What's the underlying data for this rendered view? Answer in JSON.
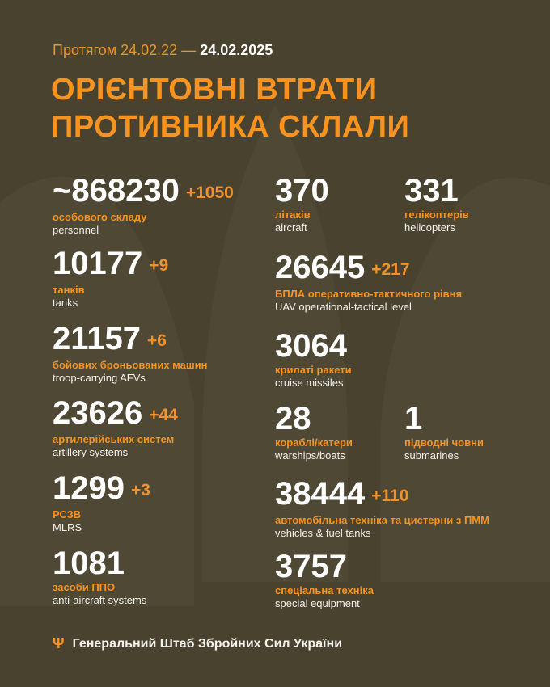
{
  "header": {
    "period_prefix": "Протягом 24.02.22 —",
    "period_end": "24.02.2025",
    "title_line1": "ОРІЄНТОВНІ ВТРАТИ",
    "title_line2": "ПРОТИВНИКА СКЛАЛИ"
  },
  "colors": {
    "accent": "#f7931e",
    "background": "#48422f",
    "text": "#ffffff"
  },
  "stats": [
    {
      "value": "~868230",
      "delta": "+1050",
      "ua": "особового складу",
      "en": "personnel"
    },
    {
      "value": "370",
      "delta": "",
      "ua": "літаків",
      "en": "aircraft"
    },
    {
      "value": "331",
      "delta": "",
      "ua": "гелікоптерів",
      "en": "helicopters"
    },
    {
      "value": "10177",
      "delta": "+9",
      "ua": "танків",
      "en": "tanks"
    },
    {
      "value": "26645",
      "delta": "+217",
      "ua": "БПЛА оперативно-тактичного рівня",
      "en": "UAV operational-tactical level"
    },
    {
      "value": "21157",
      "delta": "+6",
      "ua": "бойових броньованих машин",
      "en": "troop-carrying AFVs"
    },
    {
      "value": "3064",
      "delta": "",
      "ua": "крилаті ракети",
      "en": "cruise missiles"
    },
    {
      "value": "23626",
      "delta": "+44",
      "ua": "артилерійських систем",
      "en": "artillery systems"
    },
    {
      "value": "28",
      "delta": "",
      "ua": "кораблі/катери",
      "en": "warships/boats"
    },
    {
      "value": "1",
      "delta": "",
      "ua": "підводні човни",
      "en": "submarines"
    },
    {
      "value": "1299",
      "delta": "+3",
      "ua": "РСЗВ",
      "en": "MLRS"
    },
    {
      "value": "38444",
      "delta": "+110",
      "ua": "автомобільна техніка та цистерни з ПММ",
      "en": "vehicles & fuel tanks"
    },
    {
      "value": "1081",
      "delta": "",
      "ua": "засоби ППО",
      "en": "anti-aircraft systems"
    },
    {
      "value": "3757",
      "delta": "",
      "ua": "спеціальна техніка",
      "en": "special equipment"
    }
  ],
  "footer": {
    "icon": "trident-icon",
    "text": "Генеральний Штаб Збройних Сил України"
  }
}
